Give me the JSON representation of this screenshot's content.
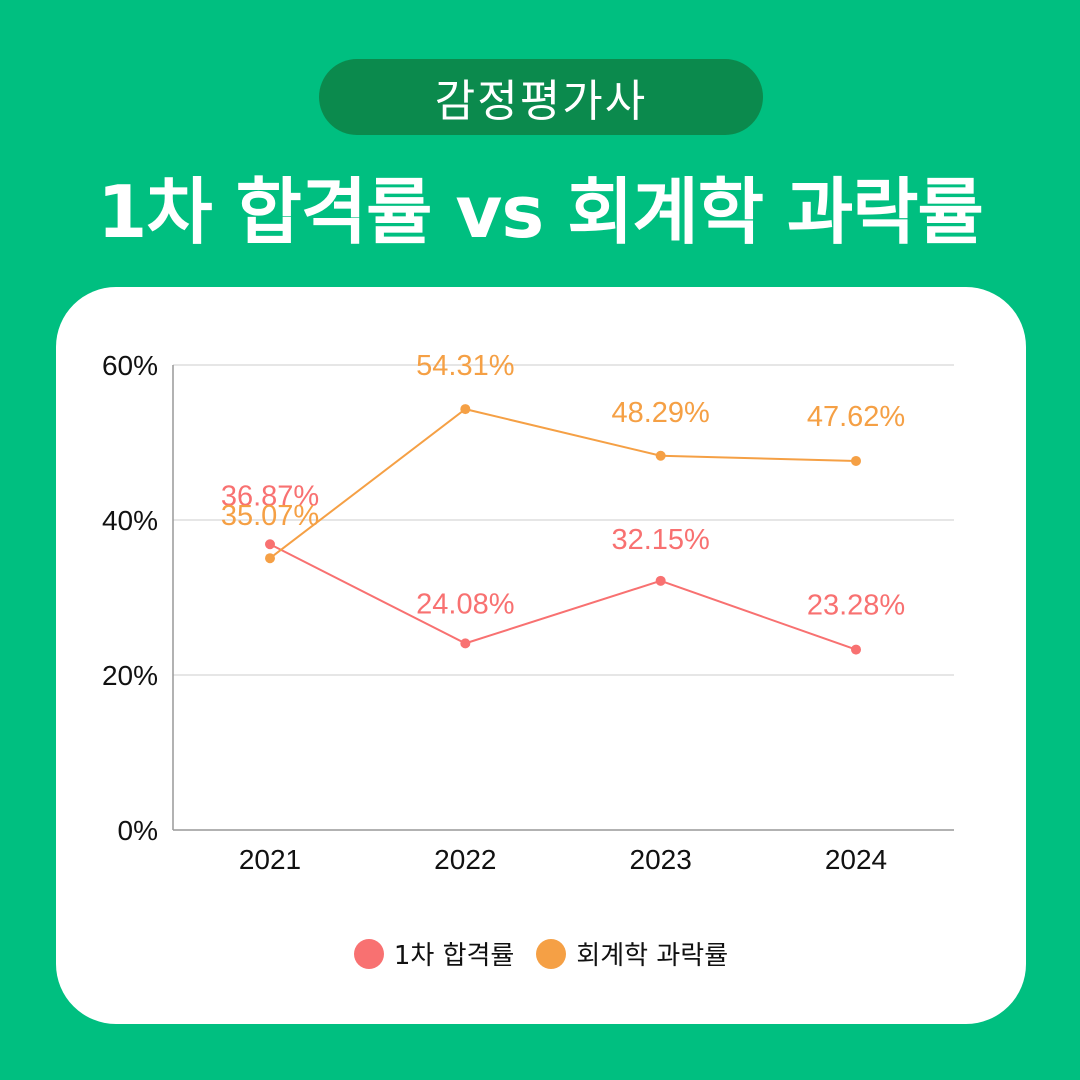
{
  "header": {
    "badge": "감정평가사",
    "title": "1차 합격률 vs 회계학 과락률"
  },
  "colors": {
    "background": "#00bf80",
    "badge": "#0b8a4d",
    "series_pass": "#f87171",
    "series_fail": "#f5a045",
    "grid": "#dddddd",
    "axis": "#999999"
  },
  "chart_data": {
    "type": "line",
    "categories": [
      "2021",
      "2022",
      "2023",
      "2024"
    ],
    "ylim": [
      0,
      60
    ],
    "yticks": [
      "0%",
      "20%",
      "40%",
      "60%"
    ],
    "ytick_values": [
      0,
      20,
      40,
      60
    ],
    "grid": true,
    "legend_position": "bottom-center",
    "series": [
      {
        "name": "1차 합격률",
        "color": "#f87171",
        "values": [
          36.87,
          24.08,
          32.15,
          23.28
        ],
        "labels": [
          "36.87%",
          "24.08%",
          "32.15%",
          "23.28%"
        ]
      },
      {
        "name": "회계학 과락률",
        "color": "#f5a045",
        "values": [
          35.07,
          54.31,
          48.29,
          47.62
        ],
        "labels": [
          "35.07%",
          "54.31%",
          "48.29%",
          "47.62%"
        ]
      }
    ]
  }
}
